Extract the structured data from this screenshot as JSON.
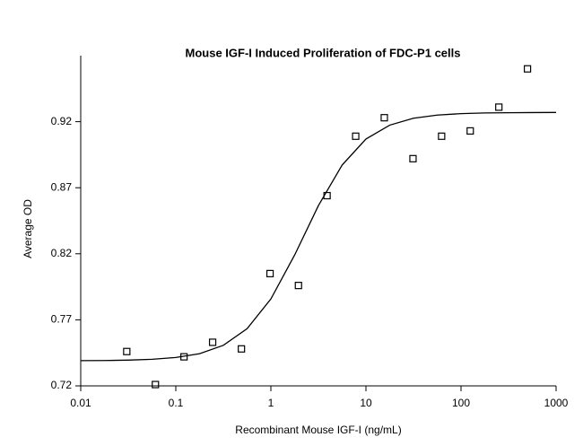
{
  "chart_data": {
    "type": "scatter",
    "title": "Mouse IGF-I Induced Proliferation of FDC-P1 cells",
    "xlabel": "Recombinant Mouse IGF-I (ng/mL)",
    "ylabel": "Average OD",
    "xscale": "log",
    "xlim": [
      0.01,
      1000
    ],
    "ylim": [
      0.72,
      0.97
    ],
    "xticks": [
      0.01,
      0.1,
      1,
      10,
      100,
      1000
    ],
    "yticks": [
      0.72,
      0.77,
      0.82,
      0.87,
      0.92
    ],
    "color": "#000000",
    "x": [
      0.0305,
      0.061,
      0.122,
      0.244,
      0.49,
      0.98,
      1.95,
      3.9,
      7.8,
      15.6,
      31.25,
      62.5,
      125,
      250,
      500
    ],
    "y": [
      0.746,
      0.721,
      0.742,
      0.753,
      0.748,
      0.805,
      0.796,
      0.864,
      0.909,
      0.923,
      0.892,
      0.909,
      0.913,
      0.931,
      0.96
    ],
    "fit": {
      "type": "line",
      "color": "#000000",
      "x": [
        0.01,
        0.0178,
        0.0316,
        0.0562,
        0.1,
        0.178,
        0.316,
        0.562,
        1,
        1.78,
        3.16,
        5.62,
        10,
        17.8,
        31.6,
        56.2,
        100,
        178,
        316,
        562,
        1000
      ],
      "y": [
        0.7391,
        0.7392,
        0.7395,
        0.7401,
        0.7415,
        0.7444,
        0.7507,
        0.7633,
        0.7858,
        0.8191,
        0.8564,
        0.8872,
        0.9069,
        0.9174,
        0.9226,
        0.925,
        0.9261,
        0.9266,
        0.9268,
        0.9269,
        0.927
      ]
    }
  }
}
